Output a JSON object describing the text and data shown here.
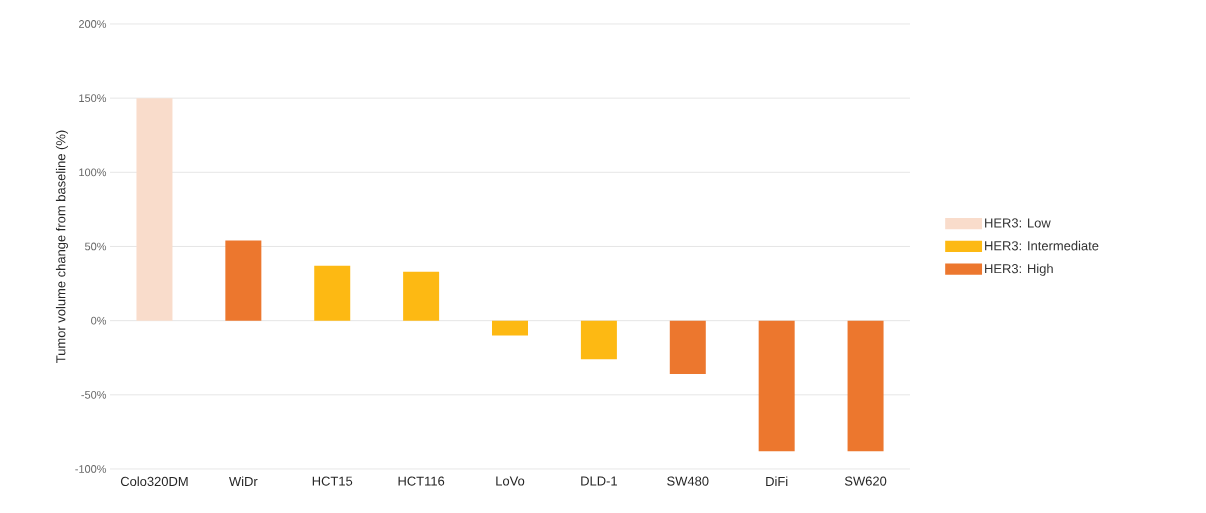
{
  "chart_data": {
    "type": "bar",
    "ylabel": "Tumor volume change from baseline (%)",
    "categories": [
      "Colo320DM",
      "WiDr",
      "HCT15",
      "HCT116",
      "LoVo",
      "DLD-1",
      "SW480",
      "DiFi",
      "SW620"
    ],
    "series": [
      {
        "name": "HER3: Low",
        "color": "#f9dccb",
        "values": [
          150,
          null,
          null,
          null,
          null,
          null,
          null,
          null,
          null
        ]
      },
      {
        "name": "HER3: Intermediate",
        "color": "#fdb913",
        "values": [
          null,
          null,
          37,
          33,
          -10,
          -26,
          null,
          null,
          null
        ]
      },
      {
        "name": "HER3: High",
        "color": "#ec772e",
        "values": [
          null,
          54,
          null,
          null,
          null,
          null,
          -36,
          -88,
          -88
        ]
      }
    ],
    "ylim": [
      -100,
      200
    ],
    "yticks": [
      {
        "value": -100,
        "label": "-100%"
      },
      {
        "value": -50,
        "label": "-50%"
      },
      {
        "value": 0,
        "label": "0%"
      },
      {
        "value": 50,
        "label": "50%"
      },
      {
        "value": 100,
        "label": "100%"
      },
      {
        "value": 150,
        "label": "150%"
      },
      {
        "value": 200,
        "label": "200%"
      }
    ],
    "grid": "y",
    "legend": "right"
  }
}
